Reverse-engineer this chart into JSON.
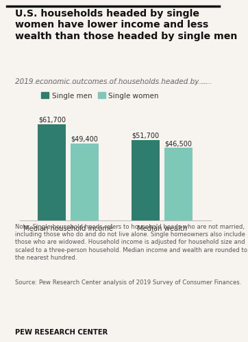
{
  "title_line1": "U.S. households headed by single",
  "title_line2": "women have lower income and less",
  "title_line3": "wealth than those headed by single men",
  "subtitle": "2019 economic outcomes of households headed by ...",
  "categories": [
    "Median household income",
    "Median wealth"
  ],
  "single_men_values": [
    61700,
    51700
  ],
  "single_women_values": [
    49400,
    46500
  ],
  "single_men_labels": [
    "$61,700",
    "$51,700"
  ],
  "single_women_labels": [
    "$49,400",
    "$46,500"
  ],
  "color_men": "#2e7d6e",
  "color_women": "#7ec8b8",
  "legend_labels": [
    "Single men",
    "Single women"
  ],
  "note": "Note: Single household heads refers to household heads who are not married, including those who do and do not live alone. Single homeowners also include those who are widowed. Household income is adjusted for household size and scaled to a three-person household. Median income and wealth are rounded to the nearest hundred.",
  "source": "Source: Pew Research Center analysis of 2019 Survey of Consumer Finances.",
  "branding": "PEW RESEARCH CENTER",
  "ylim": [
    0,
    70000
  ],
  "bg_color": "#f7f3ee"
}
